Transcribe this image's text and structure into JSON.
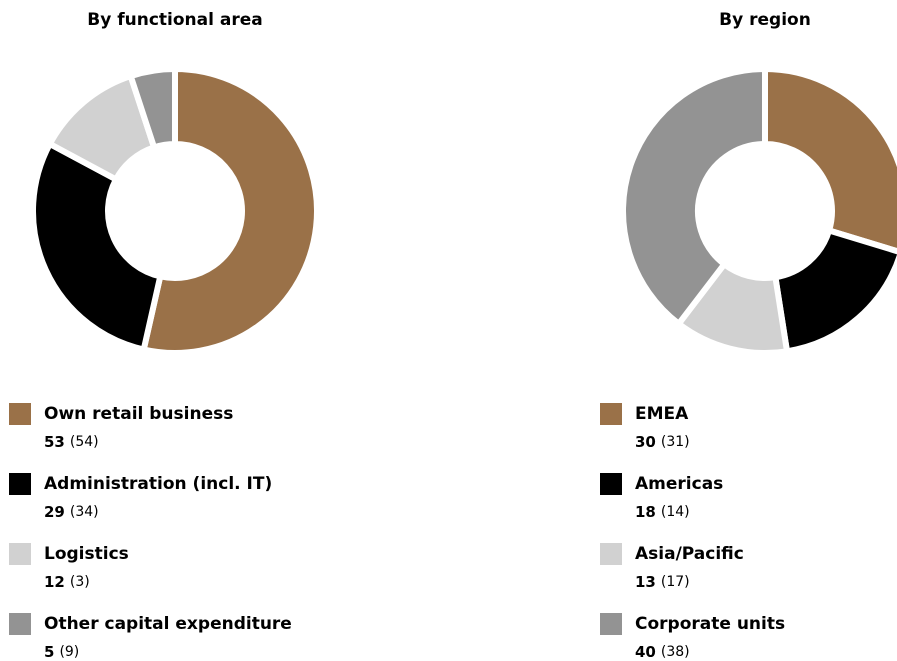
{
  "chart_data": [
    {
      "type": "pie",
      "title": "By functional area",
      "categories": [
        "Own retail business",
        "Administration (incl. IT)",
        "Logistics",
        "Other capital expenditure"
      ],
      "values": [
        53,
        29,
        12,
        5
      ],
      "prior_labels": [
        "(54)",
        "(34)",
        "(3)",
        "(9)"
      ],
      "colors": [
        "#9a7148",
        "#000000",
        "#d1d1d1",
        "#939393"
      ]
    },
    {
      "type": "pie",
      "title": "By region",
      "categories": [
        "EMEA",
        "Americas",
        "Asia/Pacific",
        "Corporate units"
      ],
      "values": [
        30,
        18,
        13,
        40
      ],
      "prior_labels": [
        "(31)",
        "(14)",
        "(17)",
        "(38)"
      ],
      "colors": [
        "#9a7148",
        "#000000",
        "#d1d1d1",
        "#939393"
      ]
    }
  ]
}
